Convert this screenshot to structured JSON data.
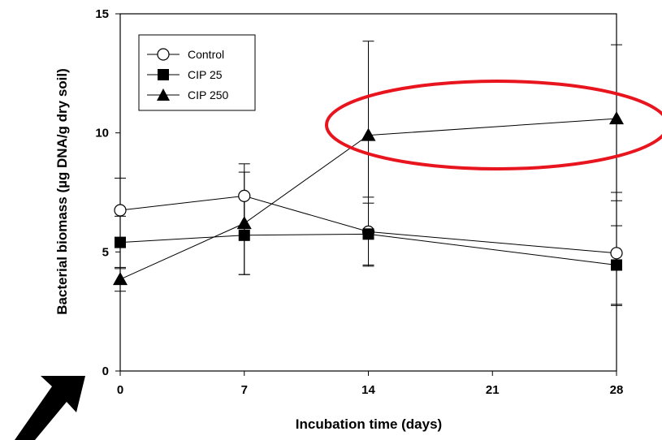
{
  "chart_data": {
    "type": "line",
    "xlabel": "Incubation time (days)",
    "ylabel": "Bacterial biomass (µg DNA/g dry soil)",
    "x": [
      0,
      7,
      14,
      28
    ],
    "xticks": [
      "0",
      "7",
      "14",
      "21",
      "28"
    ],
    "yticks": [
      "0",
      "5",
      "10",
      "15"
    ],
    "xlim": [
      0,
      28
    ],
    "ylim": [
      0,
      15
    ],
    "grid": false,
    "legend_position": "top-left",
    "series": [
      {
        "name": "Control",
        "marker": "open-circle",
        "values": [
          6.75,
          7.35,
          5.85,
          4.95
        ],
        "errors": [
          1.35,
          1.35,
          1.45,
          2.2
        ]
      },
      {
        "name": "CIP 25",
        "marker": "filled-square",
        "values": [
          5.4,
          5.7,
          5.75,
          4.45
        ],
        "errors": [
          1.1,
          1.65,
          1.3,
          1.65
        ]
      },
      {
        "name": "CIP 250",
        "marker": "filled-triangle",
        "values": [
          3.85,
          6.2,
          9.9,
          10.6
        ],
        "errors": [
          0.5,
          2.15,
          3.95,
          3.1
        ]
      }
    ],
    "annotations": {
      "highlight_color": "#e8141e",
      "arrow_color": "#000000"
    }
  }
}
